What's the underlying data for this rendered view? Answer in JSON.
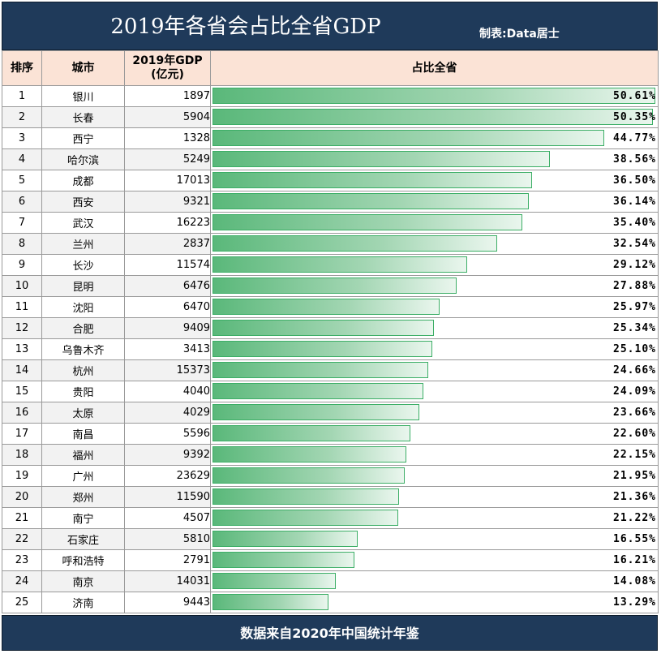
{
  "header": {
    "title": "2019年各省会占比全省GDP",
    "maker": "制表:Data居士"
  },
  "table": {
    "columns": [
      "排序",
      "城市",
      "2019年GDP\n(亿元)",
      "占比全省"
    ]
  },
  "chart_data": {
    "type": "bar",
    "title": "2019年各省会占比全省GDP",
    "orientation": "horizontal",
    "xlim": [
      0,
      50.61
    ],
    "categories": [
      "银川",
      "长春",
      "西宁",
      "哈尔滨",
      "成都",
      "西安",
      "武汉",
      "兰州",
      "长沙",
      "昆明",
      "沈阳",
      "合肥",
      "乌鲁木齐",
      "杭州",
      "贵阳",
      "太原",
      "南昌",
      "福州",
      "广州",
      "郑州",
      "南宁",
      "石家庄",
      "呼和浩特",
      "南京",
      "济南"
    ],
    "ranks": [
      1,
      2,
      3,
      4,
      5,
      6,
      7,
      8,
      9,
      10,
      11,
      12,
      13,
      14,
      15,
      16,
      17,
      18,
      19,
      20,
      21,
      22,
      23,
      24,
      25
    ],
    "gdp": [
      1897,
      5904,
      1328,
      5249,
      17013,
      9321,
      16223,
      2837,
      11574,
      6476,
      6470,
      9409,
      3413,
      15373,
      4040,
      4029,
      5596,
      9392,
      23629,
      11590,
      4507,
      5810,
      2791,
      14031,
      9443
    ],
    "values": [
      50.61,
      50.35,
      44.77,
      38.56,
      36.5,
      36.14,
      35.4,
      32.54,
      29.12,
      27.88,
      25.97,
      25.34,
      25.1,
      24.66,
      24.09,
      23.66,
      22.6,
      22.15,
      21.95,
      21.36,
      21.22,
      16.55,
      16.21,
      14.08,
      13.29
    ],
    "labels": [
      "50.61%",
      "50.35%",
      "44.77%",
      "38.56%",
      "36.50%",
      "36.14%",
      "35.40%",
      "32.54%",
      "29.12%",
      "27.88%",
      "25.97%",
      "25.34%",
      "25.10%",
      "24.66%",
      "24.09%",
      "23.66%",
      "22.60%",
      "22.15%",
      "21.95%",
      "21.36%",
      "21.22%",
      "16.55%",
      "16.21%",
      "14.08%",
      "13.29%"
    ],
    "colors": {
      "bar_start": "#5ab87a",
      "bar_end": "#eaf6ee",
      "bar_border": "#3cae66",
      "header_bg": "#fbe3d6",
      "banner_bg": "#1f3a5a"
    }
  },
  "footer": {
    "source": "数据来自2020年中国统计年鉴"
  }
}
